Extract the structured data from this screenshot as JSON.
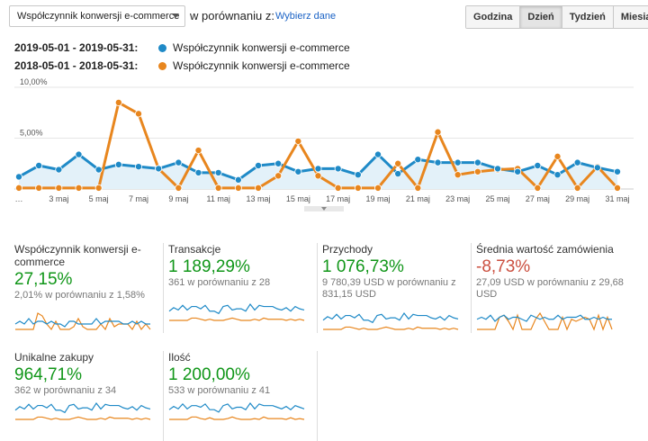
{
  "metric_select": {
    "value": "Współczynnik konwersji e-commerce"
  },
  "compare": {
    "label": "w porównaniu z:",
    "link": "Wybierz dane"
  },
  "granularity": {
    "buttons": [
      "Godzina",
      "Dzień",
      "Tydzień",
      "Miesiąc"
    ],
    "active": "Dzień"
  },
  "legend": [
    {
      "range": "2019-05-01 - 2019-05-31:",
      "name": "Współczynnik konwersji e-commerce",
      "color": "#1f8ac7"
    },
    {
      "range": "2018-05-01 - 2018-05-31:",
      "name": "Współczynnik konwersji e-commerce",
      "color": "#e8861e"
    }
  ],
  "chart_data": {
    "type": "line",
    "x": [
      "1 maj",
      "2 maj",
      "3 maj",
      "4 maj",
      "5 maj",
      "6 maj",
      "7 maj",
      "8 maj",
      "9 maj",
      "10 maj",
      "11 maj",
      "12 maj",
      "13 maj",
      "14 maj",
      "15 maj",
      "16 maj",
      "17 maj",
      "18 maj",
      "19 maj",
      "20 maj",
      "21 maj",
      "22 maj",
      "23 maj",
      "24 maj",
      "25 maj",
      "26 maj",
      "27 maj",
      "28 maj",
      "29 maj",
      "30 maj",
      "31 maj"
    ],
    "x_tick_labels": [
      "…",
      "3 maj",
      "5 maj",
      "7 maj",
      "9 maj",
      "11 maj",
      "13 maj",
      "15 maj",
      "17 maj",
      "19 maj",
      "21 maj",
      "23 maj",
      "25 maj",
      "27 maj",
      "29 maj",
      "31 maj"
    ],
    "y_tick_labels": [
      "10,00%",
      "5,00%"
    ],
    "ylim": [
      0,
      10
    ],
    "series": [
      {
        "name": "2019-05-01 - 2019-05-31",
        "color": "#1f8ac7",
        "area": true,
        "values": [
          1.2,
          2.3,
          1.9,
          3.4,
          1.9,
          2.4,
          2.2,
          2.0,
          2.6,
          1.6,
          1.6,
          0.9,
          2.3,
          2.5,
          1.7,
          2.0,
          2.0,
          1.4,
          3.4,
          1.5,
          2.9,
          2.6,
          2.6,
          2.6,
          2.0,
          1.7,
          2.3,
          1.4,
          2.6,
          2.1,
          1.7
        ]
      },
      {
        "name": "2018-05-01 - 2018-05-31",
        "color": "#e8861e",
        "area": false,
        "values": [
          0.1,
          0.1,
          0.1,
          0.1,
          0.1,
          8.5,
          7.4,
          2.0,
          0.1,
          3.8,
          0.1,
          0.1,
          0.1,
          1.3,
          4.7,
          1.3,
          0.1,
          0.1,
          0.1,
          2.5,
          0.1,
          5.6,
          1.4,
          1.7,
          1.9,
          2.0,
          0.1,
          3.2,
          0.1,
          2.2,
          0.1
        ]
      }
    ]
  },
  "cards": [
    {
      "title": "Współczynnik konwersji e-commerce",
      "pct": "27,15%",
      "tone": "green",
      "sub": "2,01% w porównaniu z 1,58%",
      "spark_blue": [
        2,
        3,
        2,
        4,
        2,
        3,
        3,
        2,
        3,
        2,
        2,
        1,
        3,
        3,
        2,
        2,
        2,
        2,
        4,
        2,
        3,
        3,
        3,
        3,
        2,
        2,
        3,
        2,
        3,
        2,
        2
      ],
      "spark_orange": [
        0,
        0,
        0,
        0,
        0,
        6,
        5,
        2,
        0,
        3,
        0,
        0,
        0,
        1,
        4,
        1,
        0,
        0,
        0,
        2,
        0,
        4,
        1,
        2,
        2,
        2,
        0,
        3,
        0,
        2,
        0
      ]
    },
    {
      "title": "Transakcje",
      "pct": "1 189,29%",
      "tone": "green",
      "sub": "361 w porównaniu z 28",
      "spark_blue": [
        8,
        11,
        9,
        13,
        9,
        12,
        12,
        10,
        13,
        8,
        8,
        6,
        12,
        13,
        9,
        10,
        10,
        8,
        14,
        9,
        13,
        12,
        12,
        12,
        10,
        9,
        11,
        8,
        12,
        10,
        9
      ],
      "spark_orange": [
        0,
        0,
        0,
        0,
        0,
        2,
        2,
        1,
        0,
        1,
        0,
        0,
        0,
        1,
        2,
        1,
        0,
        0,
        0,
        1,
        0,
        2,
        1,
        1,
        1,
        1,
        0,
        1,
        0,
        1,
        0
      ]
    },
    {
      "title": "Przychody",
      "pct": "1 076,73%",
      "tone": "green",
      "sub": "9 780,39 USD w porównaniu z 831,15 USD",
      "spark_blue": [
        8,
        11,
        9,
        13,
        9,
        12,
        12,
        10,
        13,
        8,
        8,
        6,
        12,
        13,
        9,
        10,
        10,
        8,
        14,
        9,
        13,
        12,
        12,
        12,
        10,
        9,
        11,
        8,
        12,
        10,
        9
      ],
      "spark_orange": [
        0,
        0,
        0,
        0,
        0,
        2,
        2,
        1,
        0,
        1,
        0,
        0,
        0,
        1,
        2,
        1,
        0,
        0,
        0,
        1,
        0,
        2,
        1,
        1,
        1,
        1,
        0,
        1,
        0,
        1,
        0
      ]
    },
    {
      "title": "Średnia wartość zamówienia",
      "pct": "-8,73%",
      "tone": "red",
      "sub": "27,09 USD w porównaniu z 29,68 USD",
      "spark_blue": [
        5,
        6,
        5,
        7,
        4,
        6,
        7,
        5,
        6,
        6,
        5,
        4,
        7,
        6,
        5,
        6,
        5,
        5,
        7,
        5,
        6,
        6,
        6,
        7,
        5,
        5,
        6,
        5,
        6,
        5,
        5
      ],
      "spark_orange": [
        0,
        0,
        0,
        0,
        0,
        6,
        7,
        4,
        0,
        7,
        0,
        0,
        0,
        5,
        8,
        4,
        0,
        0,
        0,
        6,
        0,
        5,
        4,
        5,
        6,
        5,
        0,
        7,
        0,
        6,
        0
      ]
    },
    {
      "title": "Unikalne zakupy",
      "pct": "964,71%",
      "tone": "green",
      "sub": "362 w porównaniu z 34",
      "spark_blue": [
        8,
        11,
        9,
        13,
        9,
        12,
        12,
        10,
        13,
        8,
        8,
        6,
        12,
        13,
        9,
        10,
        10,
        8,
        14,
        9,
        13,
        12,
        12,
        12,
        10,
        9,
        11,
        8,
        12,
        10,
        9
      ],
      "spark_orange": [
        0,
        0,
        0,
        0,
        0,
        2,
        2,
        1,
        0,
        1,
        0,
        0,
        0,
        1,
        2,
        1,
        0,
        0,
        0,
        1,
        0,
        2,
        1,
        1,
        1,
        1,
        0,
        1,
        0,
        1,
        0
      ]
    },
    {
      "title": "Ilość",
      "pct": "1 200,00%",
      "tone": "green",
      "sub": "533 w porównaniu z 41",
      "spark_blue": [
        12,
        16,
        13,
        19,
        13,
        17,
        17,
        15,
        19,
        12,
        12,
        9,
        17,
        19,
        13,
        15,
        15,
        12,
        20,
        13,
        19,
        17,
        17,
        17,
        15,
        13,
        16,
        12,
        17,
        15,
        13
      ],
      "spark_orange": [
        0,
        0,
        0,
        0,
        0,
        3,
        3,
        1,
        0,
        2,
        0,
        0,
        0,
        1,
        3,
        1,
        0,
        0,
        0,
        1,
        0,
        3,
        1,
        1,
        1,
        1,
        0,
        2,
        0,
        1,
        0
      ]
    }
  ]
}
